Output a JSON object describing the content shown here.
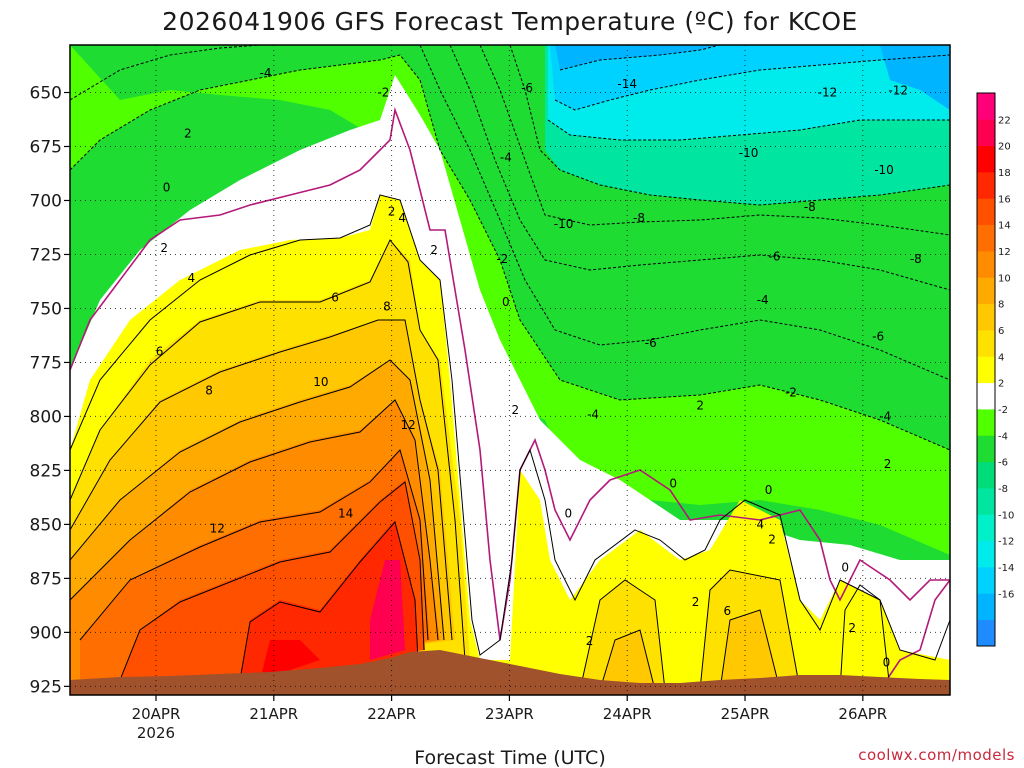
{
  "chart_data": {
    "type": "heatmap",
    "title": "2026041906 GFS Forecast Temperature (ºC) for KCOE",
    "xlabel": "Forecast Time (UTC)",
    "ylabel": "",
    "x_ticks": [
      "20APR",
      "21APR",
      "22APR",
      "23APR",
      "24APR",
      "25APR",
      "26APR"
    ],
    "x_tick_days": [
      1,
      2,
      3,
      4,
      5,
      6,
      7
    ],
    "x_year_label": "2026",
    "xlim_days": [
      0.27,
      7.74
    ],
    "y_ticks": [
      650,
      675,
      700,
      725,
      750,
      775,
      800,
      825,
      850,
      875,
      900,
      925
    ],
    "ylim": [
      628,
      929
    ],
    "grid": true,
    "colorbar": {
      "labels": [
        22,
        20,
        18,
        16,
        14,
        12,
        10,
        8,
        6,
        4,
        2,
        -2,
        -4,
        -6,
        -8,
        -10,
        -12,
        -14,
        -16
      ],
      "colors": [
        "#1e8cff",
        "#00b4ff",
        "#00d2ff",
        "#00ebeb",
        "#00f0c8",
        "#00e6a0",
        "#00dc78",
        "#1edc32",
        "#50ff00",
        "#ffffff",
        "#ffff00",
        "#ffe100",
        "#ffc800",
        "#ffaa00",
        "#ff8c00",
        "#ff6e00",
        "#ff5000",
        "#ff2800",
        "#ff0000",
        "#ff0050",
        "#ff0078"
      ]
    },
    "contour_labels": [
      {
        "text": "-4",
        "day": 1.93,
        "p": 641
      },
      {
        "text": "-2",
        "day": 2.93,
        "p": 650
      },
      {
        "text": "-6",
        "day": 4.15,
        "p": 648
      },
      {
        "text": "-14",
        "day": 5.0,
        "p": 646
      },
      {
        "text": "-12",
        "day": 6.7,
        "p": 650
      },
      {
        "text": "-12",
        "day": 7.3,
        "p": 649
      },
      {
        "text": "2",
        "day": 1.27,
        "p": 669
      },
      {
        "text": "-4",
        "day": 3.97,
        "p": 680
      },
      {
        "text": "-10",
        "day": 6.03,
        "p": 678
      },
      {
        "text": "-10",
        "day": 7.18,
        "p": 686
      },
      {
        "text": "0",
        "day": 1.09,
        "p": 694
      },
      {
        "text": "2",
        "day": 3.0,
        "p": 705
      },
      {
        "text": "4",
        "day": 3.09,
        "p": 708
      },
      {
        "text": "-10",
        "day": 4.46,
        "p": 711
      },
      {
        "text": "-8",
        "day": 5.1,
        "p": 708
      },
      {
        "text": "-8",
        "day": 6.55,
        "p": 703
      },
      {
        "text": "2",
        "day": 1.07,
        "p": 722
      },
      {
        "text": "2",
        "day": 3.36,
        "p": 723
      },
      {
        "text": "-2",
        "day": 3.94,
        "p": 727
      },
      {
        "text": "-6",
        "day": 6.25,
        "p": 726
      },
      {
        "text": "-8",
        "day": 7.45,
        "p": 727
      },
      {
        "text": "4",
        "day": 1.3,
        "p": 736
      },
      {
        "text": "6",
        "day": 2.52,
        "p": 745
      },
      {
        "text": "8",
        "day": 2.96,
        "p": 749
      },
      {
        "text": "0",
        "day": 3.97,
        "p": 747
      },
      {
        "text": "-4",
        "day": 6.15,
        "p": 746
      },
      {
        "text": "-6",
        "day": 7.13,
        "p": 763
      },
      {
        "text": "6",
        "day": 1.03,
        "p": 770
      },
      {
        "text": "-6",
        "day": 5.2,
        "p": 766
      },
      {
        "text": "8",
        "day": 1.45,
        "p": 788
      },
      {
        "text": "10",
        "day": 2.4,
        "p": 784
      },
      {
        "text": "-2",
        "day": 6.39,
        "p": 789
      },
      {
        "text": "2",
        "day": 4.05,
        "p": 797
      },
      {
        "text": "-4",
        "day": 4.71,
        "p": 799
      },
      {
        "text": "2",
        "day": 5.62,
        "p": 795
      },
      {
        "text": "-4",
        "day": 7.19,
        "p": 800
      },
      {
        "text": "12",
        "day": 3.14,
        "p": 804
      },
      {
        "text": "2",
        "day": 7.21,
        "p": 822
      },
      {
        "text": "0",
        "day": 5.39,
        "p": 831
      },
      {
        "text": "0",
        "day": 6.2,
        "p": 834
      },
      {
        "text": "14",
        "day": 2.61,
        "p": 845
      },
      {
        "text": "0",
        "day": 4.5,
        "p": 845
      },
      {
        "text": "12",
        "day": 1.52,
        "p": 852
      },
      {
        "text": "4",
        "day": 6.13,
        "p": 850
      },
      {
        "text": "2",
        "day": 6.23,
        "p": 857
      },
      {
        "text": "0",
        "day": 6.85,
        "p": 870
      },
      {
        "text": "2",
        "day": 5.58,
        "p": 886
      },
      {
        "text": "6",
        "day": 5.85,
        "p": 890
      },
      {
        "text": "2",
        "day": 4.68,
        "p": 904
      },
      {
        "text": "2",
        "day": 6.91,
        "p": 898
      },
      {
        "text": "0",
        "day": 7.2,
        "p": 914
      }
    ]
  },
  "credit": "coolwx.com/models"
}
